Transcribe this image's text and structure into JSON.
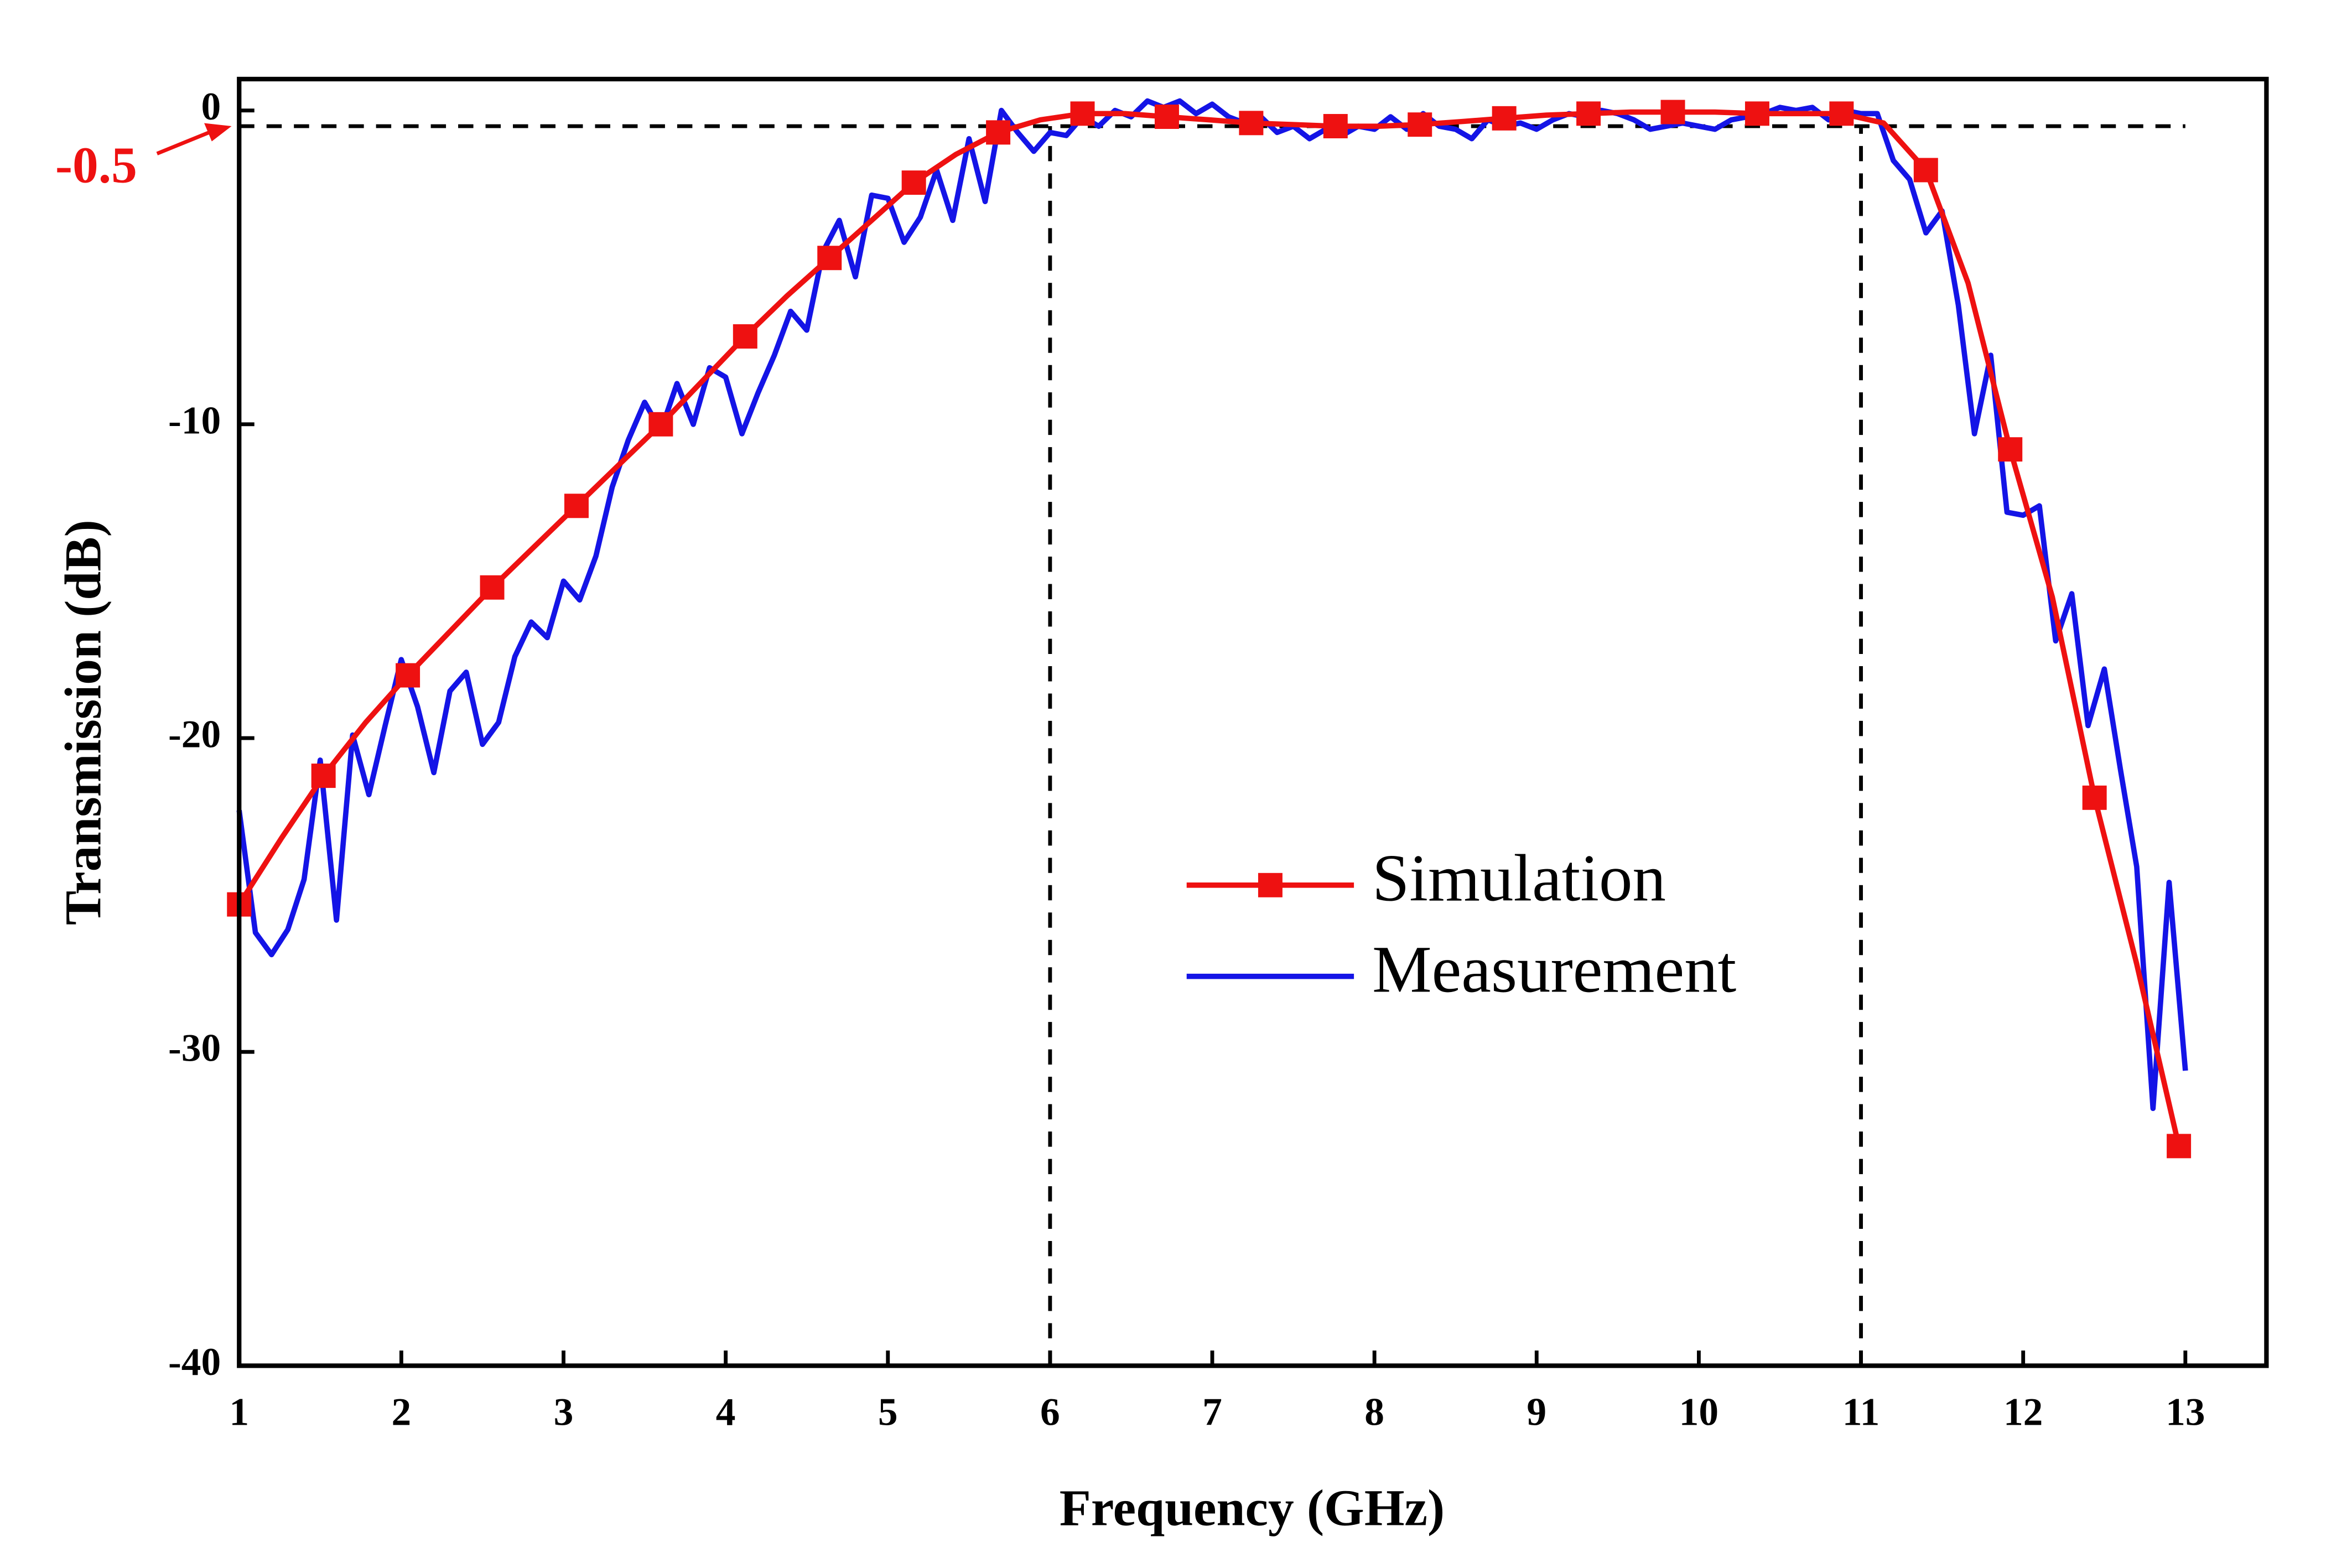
{
  "chart_data": {
    "type": "line",
    "xlabel": "Frequency (GHz)",
    "ylabel": "Transmission (dB)",
    "xlim": [
      1,
      13.5
    ],
    "ylim": [
      -40,
      1
    ],
    "xticks": [
      1,
      2,
      3,
      4,
      5,
      6,
      7,
      8,
      9,
      10,
      11,
      12,
      13
    ],
    "yticks": [
      -40,
      -30,
      -20,
      -10,
      0
    ],
    "reference_line_y": -0.5,
    "reference_lines_x": [
      6,
      11
    ],
    "legend_position": "center",
    "series": [
      {
        "name": "Simulation",
        "color": "#ee1111",
        "marker": "square",
        "marker_every": 2,
        "x": [
          1.0,
          1.26,
          1.52,
          1.78,
          2.04,
          2.3,
          2.56,
          2.82,
          3.08,
          3.34,
          3.6,
          3.86,
          4.12,
          4.38,
          4.64,
          4.9,
          5.16,
          5.42,
          5.68,
          5.94,
          6.2,
          6.46,
          6.72,
          6.98,
          7.24,
          7.5,
          7.76,
          8.02,
          8.28,
          8.54,
          8.8,
          9.06,
          9.32,
          9.58,
          9.84,
          10.1,
          10.36,
          10.62,
          10.88,
          11.14,
          11.4,
          11.66,
          11.92,
          12.18,
          12.44,
          12.7,
          12.96
        ],
        "values": [
          -25.3,
          -23.2,
          -21.2,
          -19.5,
          -18.0,
          -16.6,
          -15.2,
          -13.9,
          -12.6,
          -11.3,
          -10.0,
          -8.6,
          -7.2,
          -5.9,
          -4.7,
          -3.5,
          -2.3,
          -1.4,
          -0.7,
          -0.3,
          -0.1,
          -0.1,
          -0.2,
          -0.3,
          -0.4,
          -0.45,
          -0.5,
          -0.5,
          -0.45,
          -0.35,
          -0.25,
          -0.15,
          -0.1,
          -0.05,
          -0.05,
          -0.05,
          -0.1,
          -0.1,
          -0.1,
          -0.4,
          -1.9,
          -5.5,
          -10.8,
          -15.5,
          -21.9,
          -27.2,
          -33.0
        ]
      },
      {
        "name": "Measurement",
        "color": "#1414e6",
        "marker": "none",
        "x": [
          1.0,
          1.1,
          1.2,
          1.3,
          1.4,
          1.5,
          1.6,
          1.7,
          1.8,
          1.9,
          2.0,
          2.1,
          2.2,
          2.3,
          2.4,
          2.5,
          2.6,
          2.7,
          2.8,
          2.9,
          3.0,
          3.1,
          3.2,
          3.3,
          3.4,
          3.5,
          3.6,
          3.7,
          3.8,
          3.9,
          4.0,
          4.1,
          4.2,
          4.3,
          4.4,
          4.5,
          4.6,
          4.7,
          4.8,
          4.9,
          5.0,
          5.1,
          5.2,
          5.3,
          5.4,
          5.5,
          5.6,
          5.7,
          5.8,
          5.9,
          6.0,
          6.1,
          6.2,
          6.3,
          6.4,
          6.5,
          6.6,
          6.7,
          6.8,
          6.9,
          7.0,
          7.1,
          7.2,
          7.3,
          7.4,
          7.5,
          7.6,
          7.7,
          7.8,
          7.9,
          8.0,
          8.1,
          8.2,
          8.3,
          8.4,
          8.5,
          8.6,
          8.7,
          8.8,
          8.9,
          9.0,
          9.1,
          9.2,
          9.3,
          9.4,
          9.5,
          9.6,
          9.7,
          9.8,
          9.9,
          10.0,
          10.1,
          10.2,
          10.3,
          10.4,
          10.5,
          10.6,
          10.7,
          10.8,
          10.9,
          11.0,
          11.1,
          11.2,
          11.3,
          11.4,
          11.5,
          11.6,
          11.7,
          11.8,
          11.9,
          12.0,
          12.1,
          12.2,
          12.3,
          12.4,
          12.5,
          12.6,
          12.7,
          12.8,
          12.9,
          13.0
        ],
        "values": [
          -22.3,
          -26.2,
          -26.9,
          -26.1,
          -24.5,
          -20.7,
          -25.8,
          -19.9,
          -21.8,
          -19.6,
          -17.5,
          -19.0,
          -21.1,
          -18.5,
          -17.9,
          -20.2,
          -19.5,
          -17.4,
          -16.3,
          -16.8,
          -15.0,
          -15.6,
          -14.2,
          -12.0,
          -10.5,
          -9.3,
          -10.2,
          -8.7,
          -10.0,
          -8.2,
          -8.5,
          -10.3,
          -9.0,
          -7.8,
          -6.4,
          -7.0,
          -4.5,
          -3.5,
          -5.3,
          -2.7,
          -2.8,
          -4.2,
          -3.4,
          -1.9,
          -3.5,
          -0.9,
          -2.9,
          0.0,
          -0.7,
          -1.3,
          -0.7,
          -0.8,
          -0.2,
          -0.5,
          0.0,
          -0.2,
          0.3,
          0.1,
          0.3,
          -0.1,
          0.2,
          -0.2,
          -0.4,
          -0.2,
          -0.7,
          -0.5,
          -0.9,
          -0.6,
          -0.8,
          -0.5,
          -0.6,
          -0.2,
          -0.6,
          -0.1,
          -0.5,
          -0.6,
          -0.9,
          -0.3,
          -0.5,
          -0.4,
          -0.6,
          -0.3,
          -0.1,
          -0.2,
          0.0,
          -0.1,
          -0.3,
          -0.6,
          -0.5,
          -0.4,
          -0.5,
          -0.6,
          -0.3,
          -0.2,
          -0.1,
          0.1,
          0.0,
          0.1,
          -0.3,
          0.0,
          -0.1,
          -0.1,
          -1.6,
          -2.2,
          -3.9,
          -3.2,
          -6.2,
          -10.3,
          -7.8,
          -12.8,
          -12.9,
          -12.6,
          -16.9,
          -15.4,
          -19.6,
          -17.8,
          -21.0,
          -24.1,
          -31.8,
          -24.6,
          -30.6
        ]
      }
    ]
  }
}
